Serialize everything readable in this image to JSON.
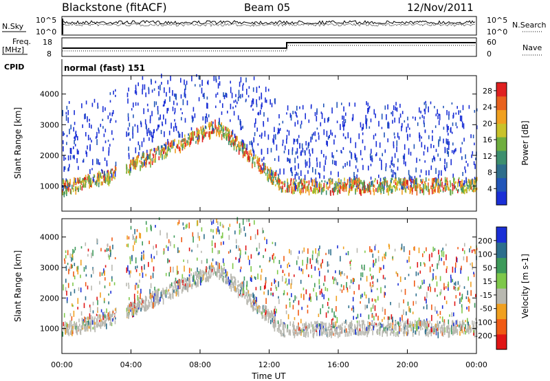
{
  "header": {
    "station": "Blackstone (fitACF)",
    "beam": "Beam 05",
    "date": "12/Nov/2011"
  },
  "top_panels": {
    "nsky_label": "N.Sky",
    "nsky_ticks": [
      "10^5",
      "10^0"
    ],
    "nsearch_label": "N.Search",
    "nsearch_ticks": [
      "10^5",
      "10^0"
    ],
    "freq_label": "Freq.",
    "freq_unit": "[MHz]",
    "freq_ticks": [
      "18",
      "8"
    ],
    "nave_label": "Nave",
    "nave_ticks": [
      "60",
      "0"
    ],
    "cpid_label": "CPID",
    "cpid_text": "normal (fast) 151"
  },
  "colors": {
    "power": [
      "#1a2fd6",
      "#2155b8",
      "#2e6e8c",
      "#3d8f6e",
      "#6fae3e",
      "#c9c22a",
      "#f0a020",
      "#e8621e",
      "#e02020"
    ],
    "velocity": [
      "#e01515",
      "#f05a14",
      "#f0a020",
      "#b8b8b0",
      "#7ec84a",
      "#3d9a5a",
      "#2c6e8c",
      "#1a2fd6"
    ]
  },
  "chart_data": [
    {
      "type": "heatmap",
      "panel": "power",
      "ylabel": "Slant Range [km]",
      "ylim": [
        180,
        4600
      ],
      "yticks": [
        "1000",
        "2000",
        "3000",
        "4000"
      ],
      "xticks": [
        "00:00",
        "04:00",
        "08:00",
        "12:00",
        "16:00",
        "20:00",
        "00:00"
      ],
      "xlim_hours": [
        0,
        24
      ],
      "colorbar_label": "Power [dB]",
      "colorbar_ticks": [
        "4",
        "8",
        "12",
        "16",
        "20",
        "24",
        "28"
      ],
      "colorbar_range": [
        0,
        30
      ]
    },
    {
      "type": "heatmap",
      "panel": "velocity",
      "ylabel": "Slant Range [km]",
      "ylim": [
        180,
        4600
      ],
      "yticks": [
        "1000",
        "2000",
        "3000",
        "4000"
      ],
      "xticks": [
        "00:00",
        "04:00",
        "08:00",
        "12:00",
        "16:00",
        "20:00",
        "00:00"
      ],
      "xlabel": "Time UT",
      "colorbar_label": "Velocity [m s-1]",
      "colorbar_ticks": [
        "200",
        "100",
        "50",
        "15",
        "-15",
        "-50",
        "-100",
        "-200"
      ]
    }
  ]
}
